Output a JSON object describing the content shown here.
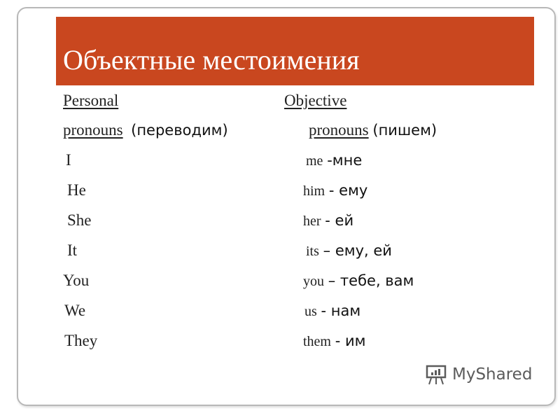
{
  "title": "Объектные местоимения",
  "headers": {
    "left_line1": "Personal",
    "left_line2": "pronouns",
    "left_note": "(переводим)",
    "right_line1": "Objective",
    "right_line2": "pronouns",
    "right_note": "(пишем)"
  },
  "rows": [
    {
      "personal": "I",
      "objective": "me",
      "translation": "-мне"
    },
    {
      "personal": "He",
      "objective": "him",
      "translation": "- ему"
    },
    {
      "personal": "She",
      "objective": "her",
      "translation": "- ей"
    },
    {
      "personal": "It",
      "objective": "its",
      "translation": "– ему, ей"
    },
    {
      "personal": "You",
      "objective": "you",
      "translation": "– тебе, вам"
    },
    {
      "personal": "We",
      "objective": "us",
      "translation": "- нам"
    },
    {
      "personal": "They",
      "objective": "them",
      "translation": "- им"
    }
  ],
  "watermark": "MyShared",
  "colors": {
    "title_bar": "#c9471f"
  }
}
